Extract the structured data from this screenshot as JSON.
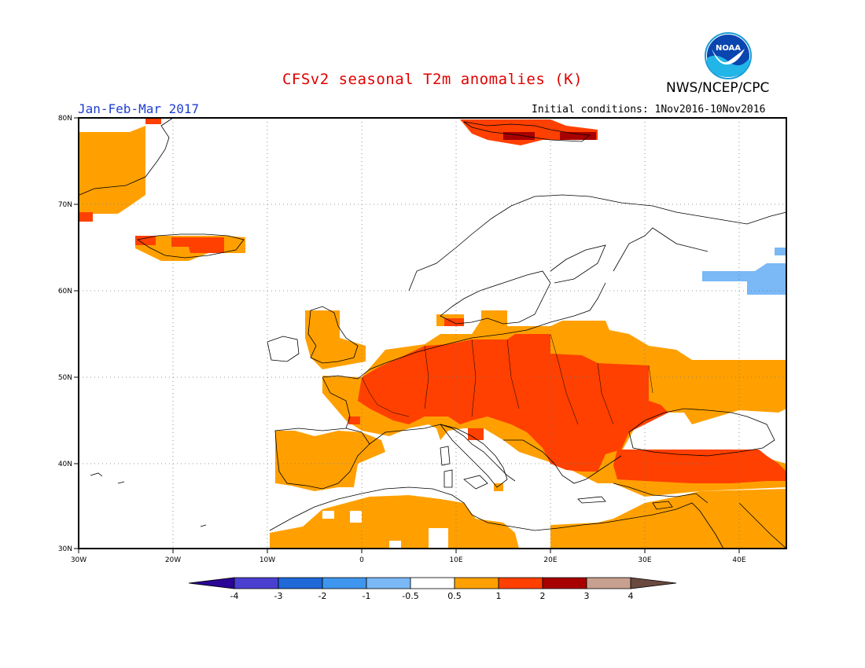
{
  "title": "CFSv2 seasonal T2m anomalies (K)",
  "agency": "NWS/NCEP/CPC",
  "logo_text": "NOAA",
  "period": "Jan-Feb-Mar 2017",
  "initial_conditions": "Initial conditions: 1Nov2016-10Nov2016",
  "axes": {
    "lon_labels": [
      "30W",
      "20W",
      "10W",
      "0",
      "10E",
      "20E",
      "30E",
      "40E"
    ],
    "lat_labels": [
      "80N",
      "70N",
      "60N",
      "50N",
      "40N",
      "30N"
    ],
    "lon_range": [
      -30,
      45
    ],
    "lat_range": [
      30,
      80
    ],
    "grid": "dotted"
  },
  "colorbar": {
    "labels": [
      "-4",
      "-3",
      "-2",
      "-1",
      "-0.5",
      "0.5",
      "1",
      "2",
      "3",
      "4"
    ],
    "colors": [
      "#2a0596",
      "#4a3fd0",
      "#1f68d8",
      "#3f96ee",
      "#7ab8f6",
      "#ffffff",
      "#ffa000",
      "#ff4000",
      "#a80000",
      "#c8a090",
      "#6a4a40"
    ]
  },
  "colors": {
    "land_outline": "#000000",
    "anomaly_0p5_1": "#ffa000",
    "anomaly_1_2": "#ff4000",
    "anomaly_2_3": "#a80000",
    "anomaly_neg": "#7ab8f6"
  }
}
